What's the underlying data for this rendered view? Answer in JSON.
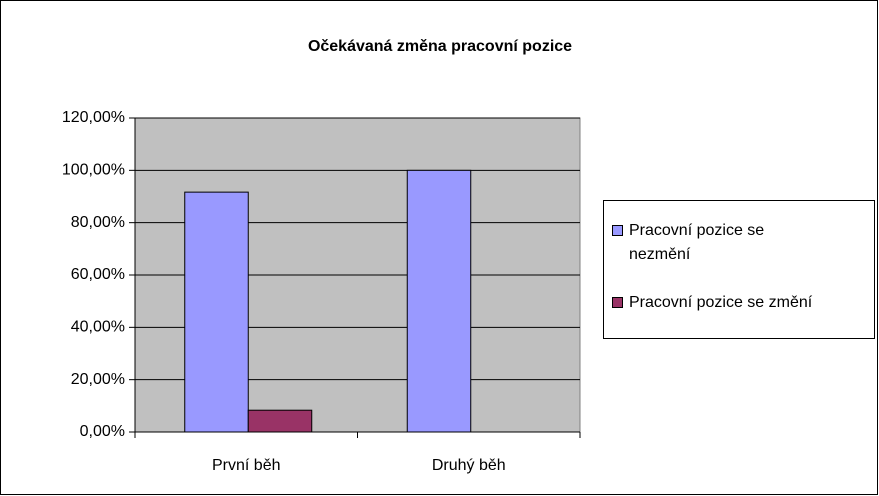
{
  "chart_data": {
    "type": "bar",
    "title": "Očekávaná změna pracovní pozice",
    "categories": [
      "První běh",
      "Druhý běh"
    ],
    "series": [
      {
        "name": "Pracovní pozice se nezmění",
        "color": "#9999ff",
        "values": [
          91.67,
          100
        ]
      },
      {
        "name": "Pracovní pozice se změní",
        "color": "#993366",
        "values": [
          8.33,
          0
        ]
      }
    ],
    "ylim": [
      0,
      120
    ],
    "yticks": [
      {
        "value": 0,
        "label": "0,00%"
      },
      {
        "value": 20,
        "label": "20,00%"
      },
      {
        "value": 40,
        "label": "40,00%"
      },
      {
        "value": 60,
        "label": "60,00%"
      },
      {
        "value": 80,
        "label": "80,00%"
      },
      {
        "value": 100,
        "label": "100,00%"
      },
      {
        "value": 120,
        "label": "120,00%"
      }
    ],
    "grid": true,
    "legend": "right"
  }
}
